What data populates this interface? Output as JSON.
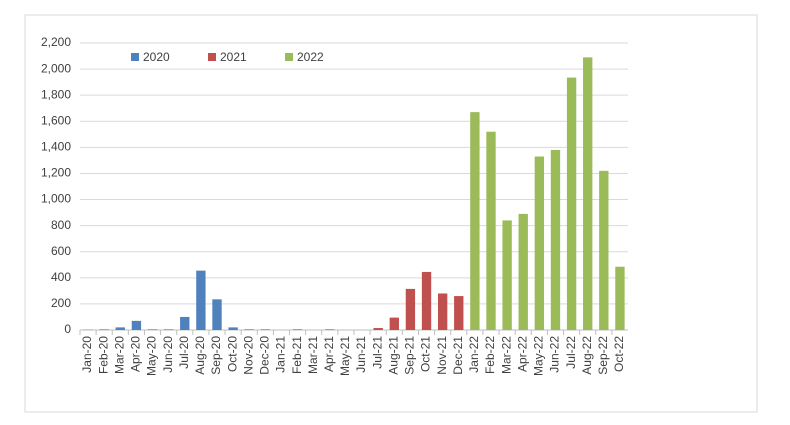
{
  "chart_data": {
    "type": "bar",
    "categories": [
      "Jan-20",
      "Feb-20",
      "Mar-20",
      "Apr-20",
      "May-20",
      "Jun-20",
      "Jul-20",
      "Aug-20",
      "Sep-20",
      "Oct-20",
      "Nov-20",
      "Dec-20",
      "Jan-21",
      "Feb-21",
      "Mar-21",
      "Apr-21",
      "May-21",
      "Jun-21",
      "Jul-21",
      "Aug-21",
      "Sep-21",
      "Oct-21",
      "Nov-21",
      "Dec-21",
      "Jan-22",
      "Feb-22",
      "Mar-22",
      "Apr-22",
      "May-22",
      "Jun-22",
      "Jul-22",
      "Aug-22",
      "Sep-22",
      "Oct-22"
    ],
    "series": [
      {
        "name": "2020",
        "color": "#4f81bd",
        "values": [
          2,
          5,
          20,
          70,
          5,
          5,
          100,
          455,
          235,
          20,
          5,
          5,
          null,
          null,
          null,
          null,
          null,
          null,
          null,
          null,
          null,
          null,
          null,
          null,
          null,
          null,
          null,
          null,
          null,
          null,
          null,
          null,
          null,
          null
        ]
      },
      {
        "name": "2021",
        "color": "#c0504d",
        "values": [
          null,
          null,
          null,
          null,
          null,
          null,
          null,
          null,
          null,
          null,
          null,
          null,
          0,
          5,
          0,
          5,
          0,
          0,
          15,
          95,
          315,
          445,
          280,
          260,
          null,
          null,
          null,
          null,
          null,
          null,
          null,
          null,
          null,
          null
        ]
      },
      {
        "name": "2022",
        "color": "#9bbb59",
        "values": [
          null,
          null,
          null,
          null,
          null,
          null,
          null,
          null,
          null,
          null,
          null,
          null,
          null,
          null,
          null,
          null,
          null,
          null,
          null,
          null,
          null,
          null,
          null,
          null,
          1670,
          1520,
          840,
          890,
          1330,
          1380,
          1935,
          2090,
          1220,
          485
        ]
      }
    ],
    "ylim": [
      0,
      2200
    ],
    "yticks": [
      0,
      200,
      400,
      600,
      800,
      {
        "value": 1000,
        "label": "1,000"
      },
      {
        "value": 1200,
        "label": "1,200"
      },
      {
        "value": 1400,
        "label": "1,400"
      },
      {
        "value": 1600,
        "label": "1,600"
      },
      {
        "value": 1800,
        "label": "1,800"
      },
      {
        "value": 2000,
        "label": "2,000"
      },
      {
        "value": 2200,
        "label": "2,200"
      }
    ],
    "grid": true,
    "legend": "top-left"
  }
}
